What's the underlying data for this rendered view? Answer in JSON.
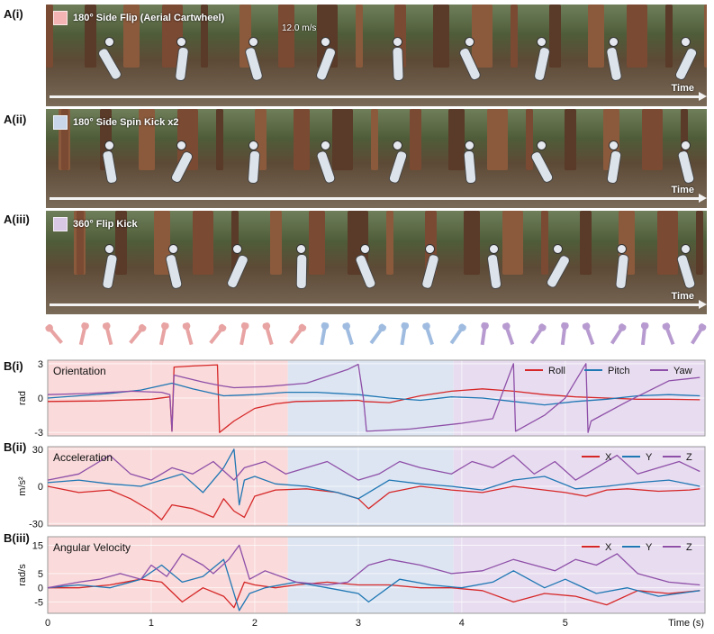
{
  "panels": {
    "a1": {
      "label": "A(i)",
      "title": "180° Side Flip (Aerial Cartwheel)",
      "color": "#f4b4b4",
      "speed": "12.0 m/s",
      "time": "Time"
    },
    "a2": {
      "label": "A(ii)",
      "title": "180° Side Spin Kick x2",
      "color": "#c9d6ea",
      "time": "Time"
    },
    "a3": {
      "label": "A(iii)",
      "title": "360° Flip Kick",
      "color": "#d9c7e6",
      "time": "Time"
    }
  },
  "phase_colors": {
    "flip": "#fadada",
    "spin": "#dde5f2",
    "kick": "#e8ddf0"
  },
  "phases_s": [
    [
      0,
      2.32
    ],
    [
      2.32,
      3.92
    ],
    [
      3.92,
      6.35
    ]
  ],
  "chart_data": [
    {
      "type": "line",
      "label": "B(i)",
      "title": "Orientation",
      "ylabel": "rad",
      "xlabel": "Time (s)",
      "xlim": [
        0,
        6.35
      ],
      "ylim": [
        -3.3,
        3.3
      ],
      "yticks": [
        -3,
        0,
        3
      ],
      "xticks": [
        0,
        1,
        2,
        3,
        4,
        5
      ],
      "legend": "top-right",
      "series": [
        {
          "name": "Roll",
          "color": "#d62728",
          "x": [
            0,
            0.5,
            1.0,
            1.18,
            1.2,
            1.22,
            1.4,
            1.64,
            1.66,
            1.8,
            2.0,
            2.2,
            2.4,
            2.7,
            3.0,
            3.05,
            3.3,
            3.6,
            3.9,
            4.2,
            4.5,
            4.8,
            5.1,
            5.4,
            5.7,
            6.0,
            6.3
          ],
          "y": [
            -0.3,
            -0.25,
            -0.1,
            0.1,
            -2.9,
            2.7,
            2.8,
            2.9,
            -3.0,
            -2.0,
            -0.9,
            -0.5,
            -0.3,
            -0.25,
            -0.2,
            -0.3,
            -0.4,
            0.2,
            0.6,
            0.8,
            0.6,
            0.3,
            0.1,
            0.0,
            -0.1,
            -0.1,
            -0.15
          ]
        },
        {
          "name": "Pitch",
          "color": "#1f77b4",
          "x": [
            0,
            0.3,
            0.6,
            0.9,
            1.2,
            1.4,
            1.7,
            2.0,
            2.3,
            2.6,
            3.0,
            3.3,
            3.6,
            3.9,
            4.2,
            4.5,
            4.8,
            5.1,
            5.4,
            5.7,
            6.0,
            6.3
          ],
          "y": [
            0.0,
            0.2,
            0.4,
            0.7,
            1.3,
            0.8,
            0.2,
            0.3,
            0.5,
            0.5,
            0.3,
            0.0,
            -0.2,
            0.1,
            0.0,
            -0.3,
            -0.6,
            -0.3,
            -0.1,
            0.2,
            0.3,
            0.2
          ]
        },
        {
          "name": "Yaw",
          "color": "#8e4fa8",
          "x": [
            0,
            0.4,
            0.8,
            1.1,
            1.18,
            1.2,
            1.22,
            1.5,
            1.66,
            1.8,
            2.1,
            2.5,
            2.9,
            3.0,
            3.05,
            3.08,
            3.5,
            4.0,
            4.3,
            4.5,
            4.52,
            4.8,
            5.0,
            5.2,
            5.22,
            5.25,
            5.6,
            6.0,
            6.3
          ],
          "y": [
            0.3,
            0.4,
            0.6,
            0.5,
            0.3,
            -2.9,
            2.0,
            1.4,
            1.1,
            0.9,
            1.0,
            1.3,
            2.5,
            2.95,
            0.0,
            -2.9,
            -2.7,
            -2.2,
            -1.8,
            3.0,
            -2.9,
            -1.5,
            0.0,
            3.0,
            -3.0,
            -2.0,
            -0.3,
            1.5,
            1.8
          ]
        }
      ]
    },
    {
      "type": "line",
      "label": "B(ii)",
      "title": "Acceleration",
      "ylabel": "m/s²",
      "xlim": [
        0,
        6.35
      ],
      "ylim": [
        -32,
        32
      ],
      "yticks": [
        -30,
        0,
        30
      ],
      "legend": "top-right",
      "series": [
        {
          "name": "X",
          "color": "#d62728",
          "x": [
            0,
            0.3,
            0.6,
            0.8,
            1.0,
            1.1,
            1.2,
            1.4,
            1.6,
            1.7,
            1.8,
            1.9,
            2.0,
            2.2,
            2.5,
            2.8,
            3.0,
            3.1,
            3.3,
            3.6,
            3.9,
            4.2,
            4.5,
            4.8,
            5.0,
            5.2,
            5.4,
            5.6,
            5.9,
            6.2,
            6.3
          ],
          "y": [
            0,
            -5,
            -3,
            -10,
            -20,
            -27,
            -15,
            -18,
            -25,
            -10,
            -20,
            -25,
            -8,
            -3,
            -2,
            -5,
            -10,
            -18,
            -5,
            0,
            -3,
            -5,
            0,
            -3,
            -5,
            -8,
            -3,
            -2,
            -4,
            -3,
            -2
          ]
        },
        {
          "name": "Y",
          "color": "#1f77b4",
          "x": [
            0,
            0.3,
            0.6,
            0.9,
            1.1,
            1.3,
            1.5,
            1.7,
            1.8,
            1.85,
            1.9,
            2.0,
            2.2,
            2.5,
            2.8,
            3.0,
            3.3,
            3.6,
            3.9,
            4.2,
            4.5,
            4.8,
            5.1,
            5.4,
            5.7,
            6.0,
            6.3
          ],
          "y": [
            3,
            5,
            2,
            0,
            5,
            10,
            -5,
            15,
            30,
            -15,
            5,
            8,
            2,
            0,
            -5,
            -10,
            5,
            2,
            0,
            -3,
            5,
            8,
            -2,
            0,
            3,
            5,
            0
          ]
        },
        {
          "name": "Z",
          "color": "#8e4fa8",
          "x": [
            0,
            0.3,
            0.5,
            0.6,
            0.8,
            1.0,
            1.2,
            1.4,
            1.6,
            1.8,
            1.9,
            2.1,
            2.3,
            2.5,
            2.7,
            3.0,
            3.2,
            3.4,
            3.6,
            3.9,
            4.1,
            4.3,
            4.5,
            4.7,
            4.9,
            5.1,
            5.3,
            5.5,
            5.7,
            5.9,
            6.1,
            6.3
          ],
          "y": [
            5,
            10,
            20,
            25,
            10,
            5,
            15,
            10,
            20,
            5,
            15,
            20,
            10,
            15,
            20,
            5,
            10,
            20,
            15,
            10,
            20,
            15,
            25,
            10,
            20,
            5,
            15,
            25,
            10,
            15,
            20,
            12
          ]
        }
      ]
    },
    {
      "type": "line",
      "label": "B(iii)",
      "title": "Angular Velocity",
      "ylabel": "rad/s",
      "xlabel": "Time (s)",
      "xlim": [
        0,
        6.35
      ],
      "ylim": [
        -9,
        18
      ],
      "yticks": [
        -5,
        0,
        5,
        15
      ],
      "legend": "top-right",
      "series": [
        {
          "name": "X",
          "color": "#d62728",
          "x": [
            0,
            0.3,
            0.6,
            0.9,
            1.1,
            1.3,
            1.5,
            1.7,
            1.8,
            1.9,
            2.0,
            2.2,
            2.4,
            2.7,
            3.0,
            3.3,
            3.6,
            3.9,
            4.2,
            4.5,
            4.8,
            5.1,
            5.4,
            5.7,
            6.0,
            6.3
          ],
          "y": [
            0,
            0,
            1,
            3,
            2,
            -5,
            0,
            -3,
            -7,
            2,
            1,
            0,
            1,
            2,
            1,
            1,
            0,
            0,
            -1,
            -5,
            -2,
            -3,
            -6,
            -1,
            -2,
            -1
          ]
        },
        {
          "name": "Y",
          "color": "#1f77b4",
          "x": [
            0,
            0.3,
            0.6,
            0.9,
            1.1,
            1.3,
            1.5,
            1.7,
            1.85,
            1.95,
            2.1,
            2.4,
            2.7,
            3.0,
            3.1,
            3.4,
            3.7,
            4.0,
            4.3,
            4.5,
            4.8,
            5.0,
            5.3,
            5.6,
            5.9,
            6.3
          ],
          "y": [
            0,
            1,
            0,
            3,
            8,
            2,
            4,
            10,
            -8,
            -2,
            0,
            2,
            0,
            -2,
            -5,
            3,
            1,
            0,
            2,
            6,
            0,
            3,
            -2,
            0,
            -3,
            -1
          ]
        },
        {
          "name": "Z",
          "color": "#8e4fa8",
          "x": [
            0,
            0.3,
            0.5,
            0.7,
            0.9,
            1.0,
            1.15,
            1.3,
            1.5,
            1.6,
            1.75,
            1.85,
            1.95,
            2.1,
            2.4,
            2.7,
            2.9,
            3.0,
            3.1,
            3.3,
            3.6,
            3.9,
            4.2,
            4.5,
            4.7,
            4.9,
            5.1,
            5.3,
            5.5,
            5.7,
            6.0,
            6.3
          ],
          "y": [
            0,
            2,
            3,
            5,
            3,
            8,
            4,
            12,
            8,
            5,
            10,
            15,
            3,
            6,
            2,
            1,
            2,
            5,
            8,
            10,
            8,
            5,
            6,
            10,
            8,
            6,
            10,
            8,
            12,
            5,
            2,
            1
          ]
        }
      ]
    }
  ]
}
